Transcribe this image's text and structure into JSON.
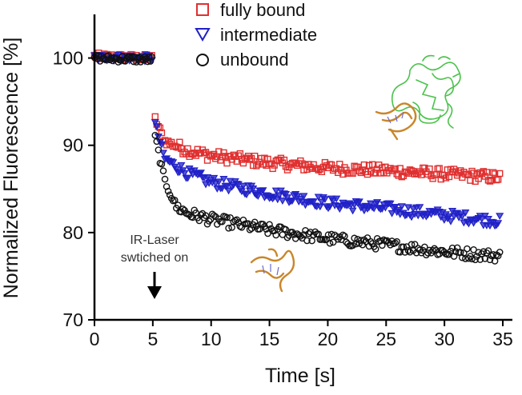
{
  "chart_data": {
    "type": "scatter",
    "title": "",
    "xlabel": "Time [s]",
    "ylabel": "Normalized Fluorescence [%]",
    "xlim": [
      0,
      35
    ],
    "ylim": [
      70,
      105
    ],
    "xticks": [
      0,
      5,
      10,
      15,
      20,
      25,
      30,
      35
    ],
    "yticks": [
      70,
      80,
      90,
      100
    ],
    "x_tick_labels": [
      "0",
      "5",
      "10",
      "15",
      "20",
      "25",
      "30",
      "35"
    ],
    "y_tick_labels": [
      "70",
      "80",
      "90",
      "100"
    ],
    "grid": false,
    "legend_position": "top-center",
    "annotation": {
      "lines": [
        "IR-Laser",
        "swtiched on"
      ],
      "x": 5
    },
    "series": [
      {
        "name": "fully bound",
        "marker": "square",
        "color": "#e03030",
        "keypoints": [
          [
            0,
            100.2
          ],
          [
            5,
            100.0
          ],
          [
            5.2,
            93.0
          ],
          [
            6,
            90.5
          ],
          [
            8,
            89.4
          ],
          [
            10,
            88.8
          ],
          [
            15,
            88.0
          ],
          [
            20,
            87.4
          ],
          [
            25,
            87.1
          ],
          [
            30,
            86.7
          ],
          [
            34.8,
            86.3
          ]
        ]
      },
      {
        "name": "intermediate",
        "marker": "triangle-down",
        "color": "#2020c8",
        "keypoints": [
          [
            0,
            100.1
          ],
          [
            5,
            100.0
          ],
          [
            5.2,
            92.5
          ],
          [
            6,
            88.5
          ],
          [
            8,
            86.8
          ],
          [
            10,
            85.8
          ],
          [
            15,
            84.5
          ],
          [
            20,
            83.4
          ],
          [
            25,
            82.8
          ],
          [
            30,
            82.0
          ],
          [
            34.8,
            81.3
          ]
        ]
      },
      {
        "name": "unbound",
        "marker": "circle",
        "color": "#111111",
        "keypoints": [
          [
            0,
            100.0
          ],
          [
            5,
            99.8
          ],
          [
            5.2,
            91.0
          ],
          [
            6,
            86.0
          ],
          [
            7,
            83.0
          ],
          [
            8,
            82.2
          ],
          [
            10,
            81.5
          ],
          [
            15,
            80.3
          ],
          [
            20,
            79.3
          ],
          [
            25,
            78.6
          ],
          [
            30,
            77.8
          ],
          [
            34.8,
            77.3
          ]
        ]
      }
    ]
  }
}
